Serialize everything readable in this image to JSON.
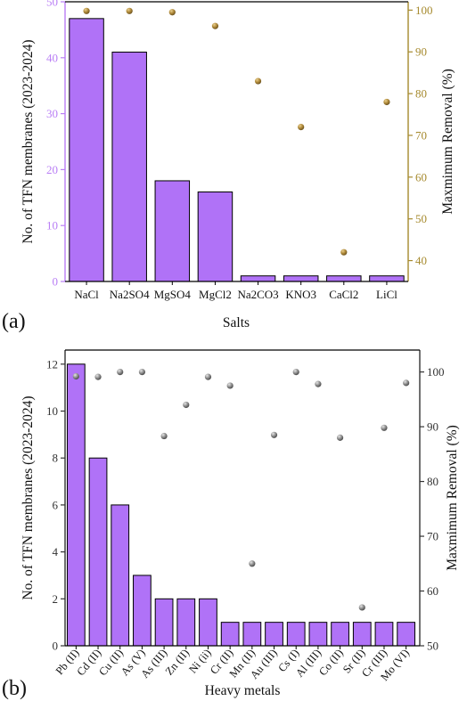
{
  "chart_data": [
    {
      "type": "bar",
      "panel_label": "(a)",
      "xlabel": "Salts",
      "ylabel": "No. of TFN membranes (2023-2024)",
      "y2label": "Maxmimum Removal (%)",
      "categories": [
        "NaCl",
        "Na2SO4",
        "MgSO4",
        "MgCl2",
        "Na2CO3",
        "KNO3",
        "CaCl2",
        "LiCl"
      ],
      "series": [
        {
          "type": "bar",
          "axis": "left",
          "values": [
            47,
            41,
            18,
            16,
            1,
            1,
            1,
            1
          ]
        },
        {
          "type": "scatter",
          "axis": "right",
          "values": [
            99.8,
            99.8,
            99.5,
            96.2,
            83,
            72,
            42,
            78
          ]
        }
      ],
      "ylim": [
        0,
        50
      ],
      "yticks": [
        0,
        10,
        20,
        30,
        40,
        50
      ],
      "y2lim": [
        35,
        102
      ],
      "y2ticks": [
        40,
        50,
        60,
        70,
        80,
        90,
        100
      ],
      "colors": {
        "bar": "#b072f7",
        "left_axis": "#b97ef5",
        "right_axis": "#a68a2e",
        "marker": "#b08a3a"
      },
      "grid": false,
      "legend": "none"
    },
    {
      "type": "bar",
      "panel_label": "(b)",
      "xlabel": "Heavy metals",
      "ylabel": "No. of TFN membranes (2023-2024)",
      "y2label": "Maxmimum Removal (%)",
      "categories": [
        "Pb (II)",
        "Cd (II)",
        "Cu (II)",
        "As (V)",
        "As (III)",
        "Zn (II)",
        "Ni (ii)",
        "Cr (II)",
        "Mn (II)",
        "Au (III)",
        "Cs (I)",
        "Al (III)",
        "Co (II)",
        "Sr (II)",
        "Cr (III)",
        "Mo (VI)"
      ],
      "series": [
        {
          "type": "bar",
          "axis": "left",
          "values": [
            12,
            8,
            6,
            3,
            2,
            2,
            2,
            1,
            1,
            1,
            1,
            1,
            1,
            1,
            1,
            1
          ]
        },
        {
          "type": "scatter",
          "axis": "right",
          "values": [
            99.2,
            99.1,
            100,
            100,
            88.3,
            94,
            99.1,
            97.5,
            65,
            88.5,
            100,
            97.8,
            88,
            57,
            89.8,
            98
          ]
        }
      ],
      "ylim": [
        0,
        12.6
      ],
      "yticks": [
        0,
        2,
        4,
        6,
        8,
        10,
        12
      ],
      "y2lim": [
        50,
        104
      ],
      "y2ticks": [
        50,
        60,
        70,
        80,
        90,
        100
      ],
      "colors": {
        "bar": "#b072f7",
        "left_axis": "#333333",
        "right_axis": "#333333",
        "marker": "#8a8a8a"
      },
      "grid": false,
      "legend": "none"
    }
  ]
}
